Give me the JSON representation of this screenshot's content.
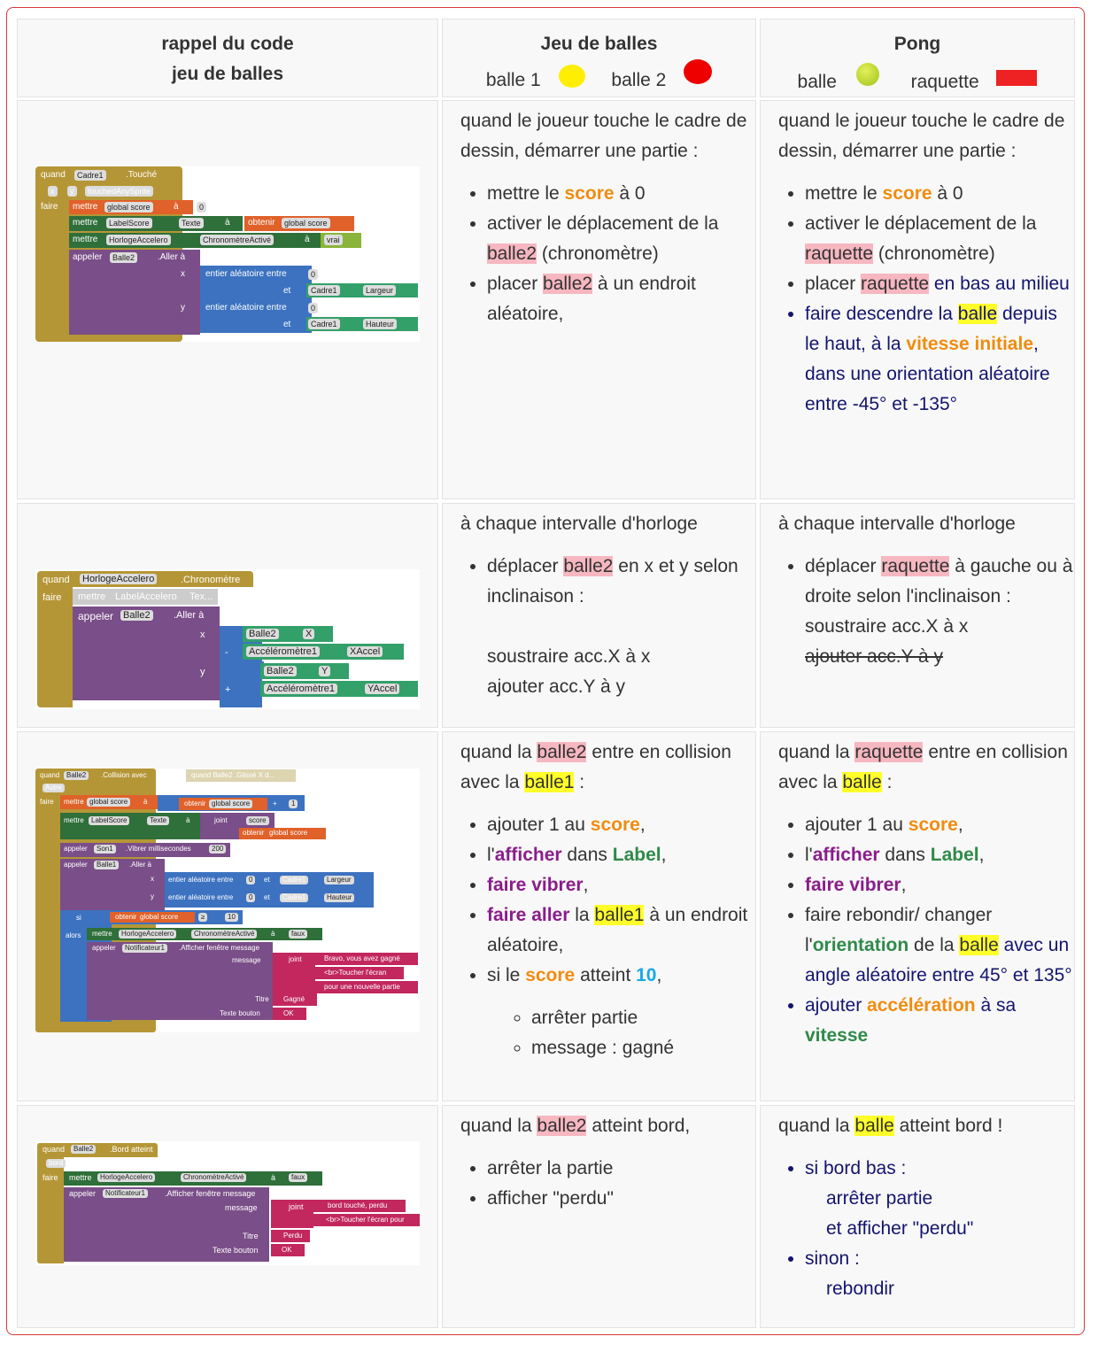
{
  "header": {
    "col1_line1": "rappel du code",
    "col1_line2": "jeu de balles",
    "col2_title": "Jeu de balles",
    "col2_ball1": "balle 1",
    "col2_ball2": "balle 2",
    "col3_title": "Pong",
    "col3_ball": "balle",
    "col3_paddle": "raquette"
  },
  "colors": {
    "yellow": "#ffee00",
    "red": "#ee0000",
    "tennis": "#b5d42a",
    "paddle": "#ee2222"
  },
  "row1": {
    "blocks": {
      "quand": "quand",
      "cadre": "Cadre1",
      "touche": ".Touché",
      "x": "x",
      "y": "y",
      "touched": "touchedAnySprite",
      "faire": "faire",
      "mettre": "mettre",
      "global_score": "global score",
      "a": "à",
      "zero": "0",
      "labelscore": "LabelScore",
      "texte": "Texte",
      "obtenir": "obtenir",
      "horloge": "HorlogeAccelero",
      "chrono": "ChronomètreActivé",
      "vrai": "vrai",
      "appeler": "appeler",
      "balle2": "Balle2",
      "aller": ".Aller à",
      "entier": "entier aléatoire entre",
      "et": "et",
      "largeur": "Largeur",
      "hauteur": "Hauteur"
    },
    "col2": {
      "intro": "quand le joueur touche le cadre de dessin, démarrer une partie :",
      "li1_a": "mettre le ",
      "li1_b": "score",
      "li1_c": " à 0",
      "li2_a": "activer le déplacement de la ",
      "li2_b": "balle2",
      "li2_c": " (chronomètre)",
      "li3_a": "placer ",
      "li3_b": "balle2",
      "li3_c": " à un endroit aléatoire,"
    },
    "col3": {
      "intro": "quand le joueur touche le cadre de dessin, démarrer une partie :",
      "li1_a": "mettre le ",
      "li1_b": "score",
      "li1_c": " à 0",
      "li2_a": "activer le déplacement de la ",
      "li2_b": "raquette",
      "li2_c": " (chronomètre)",
      "li3_a": "placer ",
      "li3_b": "raquette",
      "li3_c": " en bas au milieu",
      "li4_a": "faire descendre la ",
      "li4_b": "balle",
      "li4_c": " depuis le haut, à la ",
      "li4_d": "vitesse initiale",
      "li4_e": ", dans une orientation aléatoire entre -45° et -135°"
    }
  },
  "row2": {
    "blocks": {
      "quand": "quand",
      "horloge": "HorlogeAccelero",
      "chrono": ".Chronomètre",
      "faire": "faire",
      "mettre": "mettre",
      "labelacc": "LabelAccelero",
      "tex": "Tex...",
      "appeler": "appeler",
      "balle2": "Balle2",
      "aller": ".Aller à",
      "x": "x",
      "y": "y",
      "X": "X",
      "Y": "Y",
      "minus": "-",
      "plus": "+",
      "acc": "Accéléromètre1",
      "xacc": "XAccel",
      "yacc": "YAccel"
    },
    "col2": {
      "intro": "à chaque intervalle d'horloge",
      "li1_a": "déplacer ",
      "li1_b": "balle2",
      "li1_c": " en x et y selon inclinaison :",
      "l2": "soustraire acc.X à x",
      "l3": "ajouter acc.Y à y"
    },
    "col3": {
      "intro": "à chaque intervalle d'horloge",
      "li1_a": "déplacer ",
      "li1_b": "raquette",
      "li1_c": " à gauche ou à droite selon l'inclinaison :",
      "l2": "soustraire acc.X à x",
      "l3": "ajouter acc.Y à y"
    }
  },
  "row3": {
    "blocks": {
      "quand": "quand",
      "balle2": "Balle2",
      "collision": ".Collision avec",
      "autre": "Autre",
      "glisse": "quand Balle2 .Glissé  X d...",
      "faire": "faire",
      "mettre": "mettre",
      "global_score": "global score",
      "a": "à",
      "obtenir": "obtenir",
      "plus": "+",
      "one": "1",
      "labelscore": "LabelScore",
      "texte": "Texte",
      "joint": "joint",
      "score": "score",
      "appeler": "appeler",
      "son": "Son1",
      "vibrer": ".Vibrer  millisecondes",
      "n200": "200",
      "balle1": "Balle1",
      "aller": ".Aller à",
      "x": "x",
      "y": "y",
      "entier": "entier aléatoire entre",
      "zero": "0",
      "et": "et",
      "cadre": "Cadre1",
      "largeur": "Largeur",
      "hauteur": "Hauteur",
      "si": "si",
      "gte": "≥",
      "ten": "10",
      "alors": "alors",
      "horloge": "HorlogeAccelero",
      "chrono": "ChronomètreActivé",
      "faux": "faux",
      "notif": "Notificateur1",
      "afficher": ".Afficher fenêtre message",
      "message": "message",
      "bravo": "Bravo, vous avez gagné",
      "br": "<br>Toucher l'écran",
      "nouvelle": "pour une nouvelle partie",
      "titre": "Titre",
      "gagne": "Gagné",
      "bouton": "Texte bouton",
      "ok": "OK"
    },
    "col2": {
      "intro_a": "quand la ",
      "intro_b": "balle2",
      "intro_c": " entre en collision avec la ",
      "intro_d": "balle1",
      "intro_e": " :",
      "li1_a": "ajouter 1 au ",
      "li1_b": "score",
      "li1_c": ",",
      "li2_a": "l'",
      "li2_b": "afficher",
      "li2_c": " dans ",
      "li2_d": "Label",
      "li2_e": ",",
      "li3_a": "faire vibrer",
      "li3_b": ",",
      "li4_a": "faire aller",
      "li4_b": " la ",
      "li4_c": "balle1",
      "li4_d": " à un endroit aléatoire,",
      "li5_a": "si le ",
      "li5_b": "score",
      "li5_c": " atteint ",
      "li5_d": "10",
      "li5_e": ",",
      "sub1": "arrêter partie",
      "sub2": "message : gagné"
    },
    "col3": {
      "intro_a": "quand la ",
      "intro_b": "raquette",
      "intro_c": " entre en collision avec la ",
      "intro_d": "balle",
      "intro_e": " :",
      "li1_a": "ajouter 1 au ",
      "li1_b": "score",
      "li1_c": ",",
      "li2_a": "l'",
      "li2_b": "afficher",
      "li2_c": " dans ",
      "li2_d": "Label",
      "li2_e": ",",
      "li3_a": "faire vibrer",
      "li3_b": ",",
      "li4_a": "faire rebondir/ changer l'",
      "li4_b": "orientation",
      "li4_c": " de la ",
      "li4_d": "balle",
      "li4_e": " avec un angle aléatoire entre 45° et 135°",
      "li5_a": "ajouter ",
      "li5_b": "accélération",
      "li5_c": " à sa ",
      "li5_d": "vitesse"
    }
  },
  "row4": {
    "blocks": {
      "quand": "quand",
      "balle2": "Balle2",
      "bord_atteint": ".Bord atteint",
      "bord": "bord",
      "faire": "faire",
      "mettre": "mettre",
      "horloge": "HorlogeAccelero",
      "chrono": "ChronomètreActivé",
      "a": "à",
      "faux": "faux",
      "appeler": "appeler",
      "notif": "Notificateur1",
      "afficher": ".Afficher fenêtre message",
      "message": "message",
      "joint": "joint",
      "touche": "bord touché,  perdu",
      "br": "<br>Toucher l'écran pour",
      "titre": "Titre",
      "perdu": "Perdu",
      "bouton": "Texte bouton",
      "ok": "OK"
    },
    "col2": {
      "intro_a": "quand la ",
      "intro_b": "balle2",
      "intro_c": " atteint bord,",
      "li1": "arrêter la partie",
      "li2": "afficher \"perdu\""
    },
    "col3": {
      "intro_a": "quand la ",
      "intro_b": "balle",
      "intro_c": " atteint bord !",
      "li1": "si bord bas :",
      "l1b": "arrêter partie",
      "l1c": "et afficher \"perdu\"",
      "li2": "sinon :",
      "l2b": "rebondir"
    }
  }
}
